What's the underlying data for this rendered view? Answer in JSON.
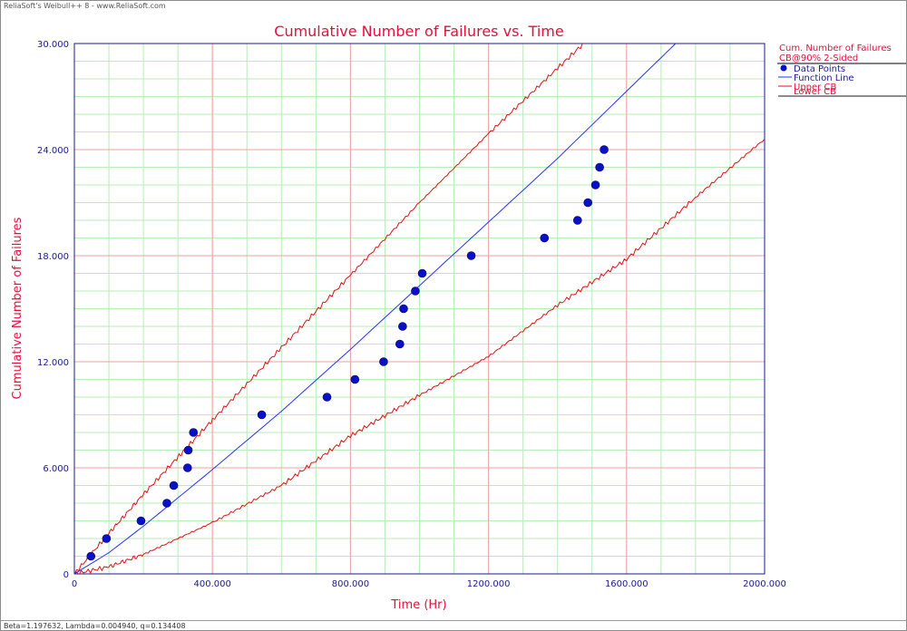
{
  "window": {
    "title_bar": "ReliaSoft's Weibull++ 8 - www.ReliaSoft.com",
    "status_bar": "Beta=1.197632, Lambda=0.004940, q=0.134408"
  },
  "colors": {
    "title": "#e0103a",
    "axis_text": "#1a1a8c",
    "data_points": "#0a10c8",
    "function_line": "#2233ff",
    "bounds": "#e01010",
    "grid_major": "#f2a0a0",
    "grid_minor": "#b8ecb8"
  },
  "chart_data": {
    "type": "scatter",
    "title": "Cumulative Number of Failures vs. Time",
    "xlabel": "Time (Hr)",
    "ylabel": "Cumulative Number of Failures",
    "xlim": [
      0,
      2000
    ],
    "ylim": [
      0,
      30
    ],
    "x_ticks": [
      0,
      400,
      800,
      1200,
      1600,
      2000
    ],
    "x_tick_labels": [
      "0",
      "400.000",
      "800.000",
      "1200.000",
      "1600.000",
      "2000.000"
    ],
    "y_ticks": [
      0,
      6,
      12,
      18,
      24,
      30
    ],
    "y_tick_labels": [
      "0",
      "6.000",
      "12.000",
      "18.000",
      "24.000",
      "30.000"
    ],
    "grid": true,
    "legend_position": "top-right",
    "legend_title": "Cum. Number of Failures",
    "legend_subtitle": "CB@90% 2-Sided",
    "legend": [
      "Data Points",
      "Function Line",
      "Upper CB",
      "Lower CB"
    ],
    "series": [
      {
        "name": "Data Points",
        "type": "scatter",
        "x": [
          48,
          93,
          193,
          268,
          288,
          328,
          330,
          345,
          543,
          732,
          813,
          896,
          943,
          951,
          954,
          988,
          1008,
          1150,
          1362,
          1458,
          1488,
          1510,
          1522,
          1535
        ],
        "y": [
          1,
          2,
          3,
          4,
          5,
          6,
          7,
          8,
          9,
          10,
          11,
          12,
          13,
          14,
          15,
          16,
          17,
          18,
          19,
          20,
          21,
          22,
          23,
          24
        ]
      },
      {
        "name": "Function Line",
        "type": "line",
        "x": [
          0,
          100,
          200,
          400,
          600,
          800,
          1000,
          1200,
          1400,
          1600,
          1800,
          1873
        ],
        "y": [
          0,
          1.2,
          2.7,
          5.9,
          9.2,
          12.7,
          16.3,
          19.9,
          23.5,
          27.3,
          31.1,
          32.6
        ]
      },
      {
        "name": "Upper CB",
        "type": "line",
        "x": [
          0,
          100,
          200,
          300,
          400,
          600,
          800,
          1000,
          1200,
          1400,
          1600,
          1640
        ],
        "y": [
          0,
          2.3,
          4.5,
          6.6,
          8.7,
          12.8,
          16.9,
          21.0,
          24.9,
          28.6,
          32.3,
          33.2
        ]
      },
      {
        "name": "Lower CB",
        "type": "line",
        "x": [
          0,
          100,
          200,
          400,
          600,
          800,
          1000,
          1200,
          1400,
          1600,
          1800,
          2000
        ],
        "y": [
          0,
          0.4,
          1.1,
          2.9,
          5.0,
          7.8,
          10.1,
          12.3,
          15.2,
          17.8,
          21.3,
          24.6
        ]
      }
    ]
  }
}
